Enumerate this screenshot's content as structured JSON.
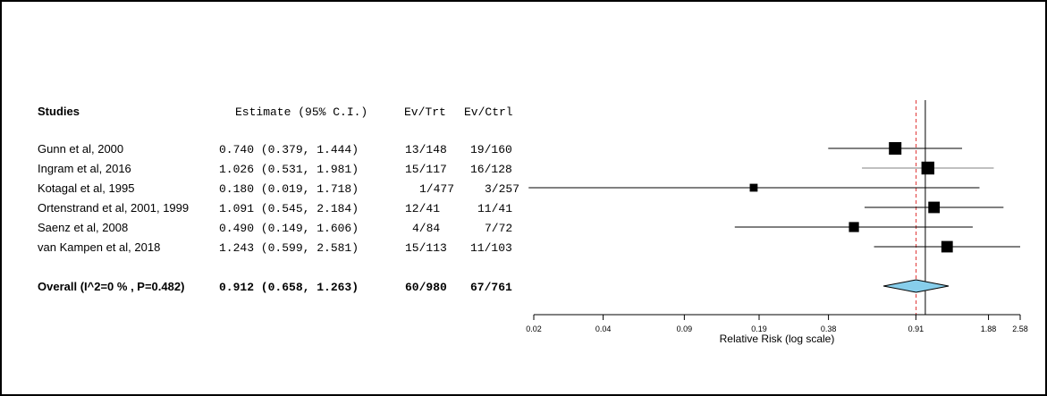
{
  "headers": {
    "studies": "Studies",
    "estimate": "Estimate (95% C.I.)",
    "ev_trt": "Ev/Trt",
    "ev_ctrl": "Ev/Ctrl"
  },
  "studies": [
    {
      "name": "Gunn et al, 2000",
      "estimate_text": "0.740 (0.379, 1.444)",
      "ev_trt": "13/148",
      "ev_ctrl": "19/160"
    },
    {
      "name": "Ingram et al, 2016",
      "estimate_text": "1.026 (0.531, 1.981)",
      "ev_trt": "15/117",
      "ev_ctrl": "16/128"
    },
    {
      "name": "Kotagal et al, 1995",
      "estimate_text": "0.180 (0.019, 1.718)",
      "ev_trt": "1/477",
      "ev_ctrl": "3/257"
    },
    {
      "name": "Ortenstrand et al, 2001, 1999",
      "estimate_text": "1.091 (0.545, 2.184)",
      "ev_trt": "12/41",
      "ev_ctrl": "11/41"
    },
    {
      "name": "Saenz et al, 2008",
      "estimate_text": "0.490 (0.149, 1.606)",
      "ev_trt": "4/84",
      "ev_ctrl": "7/72"
    },
    {
      "name": "van Kampen et al, 2018",
      "estimate_text": "1.243 (0.599, 2.581)",
      "ev_trt": "15/113",
      "ev_ctrl": "11/103"
    }
  ],
  "overall": {
    "name": "Overall (I^2=0 % , P=0.482)",
    "estimate_text": "0.912 (0.658, 1.263)",
    "ev_trt": "60/980",
    "ev_ctrl": "67/761"
  },
  "chart_data": {
    "type": "scatter",
    "xlabel": "Relative Risk (log scale)",
    "x_scale": "log",
    "xlim": [
      0.02,
      2.58
    ],
    "x_ticks": [
      0.02,
      0.04,
      0.09,
      0.19,
      0.38,
      0.91,
      1.88,
      2.58
    ],
    "x_tick_labels": [
      "0.02",
      "0.04",
      "0.09",
      "0.19",
      "0.38",
      "0.91",
      "1.88",
      "2.58"
    ],
    "null_line": 1,
    "summary_line": 0.912,
    "points": [
      {
        "estimate": 0.74,
        "lower": 0.379,
        "upper": 1.444,
        "weight": 1.0
      },
      {
        "estimate": 1.026,
        "lower": 0.531,
        "upper": 1.981,
        "weight": 1.05
      },
      {
        "estimate": 0.18,
        "lower": 0.019,
        "upper": 1.718,
        "weight": 0.35
      },
      {
        "estimate": 1.091,
        "lower": 0.545,
        "upper": 2.184,
        "weight": 0.85
      },
      {
        "estimate": 0.49,
        "lower": 0.149,
        "upper": 1.606,
        "weight": 0.65
      },
      {
        "estimate": 1.243,
        "lower": 0.599,
        "upper": 2.581,
        "weight": 0.85
      }
    ],
    "pooled": {
      "estimate": 0.912,
      "lower": 0.658,
      "upper": 1.263
    },
    "colors": {
      "ci_line": "#000000",
      "ci_line_grey": "#808080",
      "square": "#000000",
      "diamond_fill": "#87CEEB",
      "summary_line": "#e03030"
    }
  }
}
